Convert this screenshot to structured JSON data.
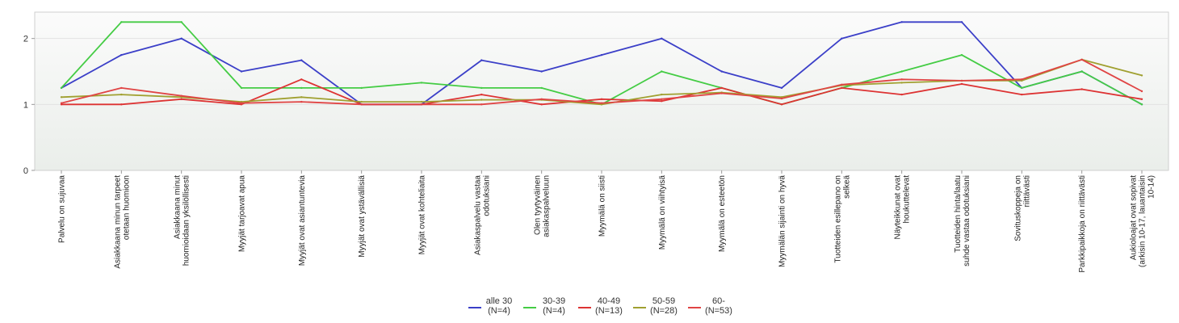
{
  "chart_data": {
    "type": "line",
    "title": "",
    "xlabel": "",
    "ylabel": "",
    "ylim": [
      0,
      2.4
    ],
    "yticks": [
      0,
      1,
      2
    ],
    "grid": true,
    "legend_position": "bottom",
    "categories": [
      [
        "Palvelu on sujuvaa"
      ],
      [
        "Asiakkaana minun tarpeet",
        "otetaan huomioon"
      ],
      [
        "Asiakkaana minut",
        "huomioidaan yksilöllisesti"
      ],
      [
        "Myyjät tarjoavat apua"
      ],
      [
        "Myyjät ovat asiantuntevia"
      ],
      [
        "Myyjät ovat ystävällisiä"
      ],
      [
        "Myyjät ovat kohteliaita"
      ],
      [
        "Asiakaspalvelu vastaa",
        "odotuksiani"
      ],
      [
        "Olen tyytyväinen",
        "asiakaspalveluun"
      ],
      [
        "Myymälä on siisti"
      ],
      [
        "Myymälä on viihtyisä"
      ],
      [
        "Myymälä on esteetön"
      ],
      [
        "Myymälän sijainti on hyvä"
      ],
      [
        "Tuotteiden esillepano on",
        "selkeä"
      ],
      [
        "Näyteikkunat ovat",
        "houkuttelevat"
      ],
      [
        "Tuotteiden hinta/laatu",
        "suhde vastaa odotuksiani"
      ],
      [
        "Sovituskoppeja on",
        "riittävästi"
      ],
      [
        "Parkkipaikkoja on riittävästi"
      ],
      [
        "Aukioloajat ovat sopivat",
        "(arkisin 10-17, lauantaisin",
        "10-14)"
      ]
    ],
    "series": [
      {
        "name": [
          "alle 30",
          "(N=4)"
        ],
        "color": "#3b3fc8",
        "values": [
          1.25,
          1.75,
          2.0,
          1.5,
          1.67,
          1.0,
          1.0,
          1.67,
          1.5,
          1.75,
          2.0,
          1.5,
          1.25,
          2.0,
          2.25,
          2.25,
          1.25,
          1.5,
          1.0
        ]
      },
      {
        "name": [
          "30-39",
          "(N=4)"
        ],
        "color": "#44cc44",
        "values": [
          1.25,
          2.25,
          2.25,
          1.25,
          1.25,
          1.25,
          1.33,
          1.25,
          1.25,
          1.0,
          1.5,
          1.25,
          1.0,
          1.25,
          1.5,
          1.75,
          1.25,
          1.5,
          1.0
        ]
      },
      {
        "name": [
          "40-49",
          "(N=13)"
        ],
        "color": "#dd3333",
        "values": [
          1.0,
          1.0,
          1.08,
          1.0,
          1.38,
          1.0,
          1.0,
          1.15,
          1.0,
          1.08,
          1.05,
          1.25,
          1.0,
          1.25,
          1.15,
          1.31,
          1.15,
          1.23,
          1.08
        ]
      },
      {
        "name": [
          "50-59",
          "(N=28)"
        ],
        "color": "#a0a030",
        "values": [
          1.11,
          1.15,
          1.11,
          1.04,
          1.11,
          1.04,
          1.04,
          1.07,
          1.07,
          1.0,
          1.15,
          1.18,
          1.11,
          1.29,
          1.33,
          1.36,
          1.36,
          1.68,
          1.44
        ]
      },
      {
        "name": [
          "60-",
          "(N=53)"
        ],
        "color": "#e04444",
        "values": [
          1.02,
          1.25,
          1.13,
          1.02,
          1.04,
          1.0,
          1.0,
          1.0,
          1.08,
          1.02,
          1.08,
          1.17,
          1.09,
          1.3,
          1.38,
          1.36,
          1.38,
          1.68,
          1.2
        ]
      }
    ]
  }
}
